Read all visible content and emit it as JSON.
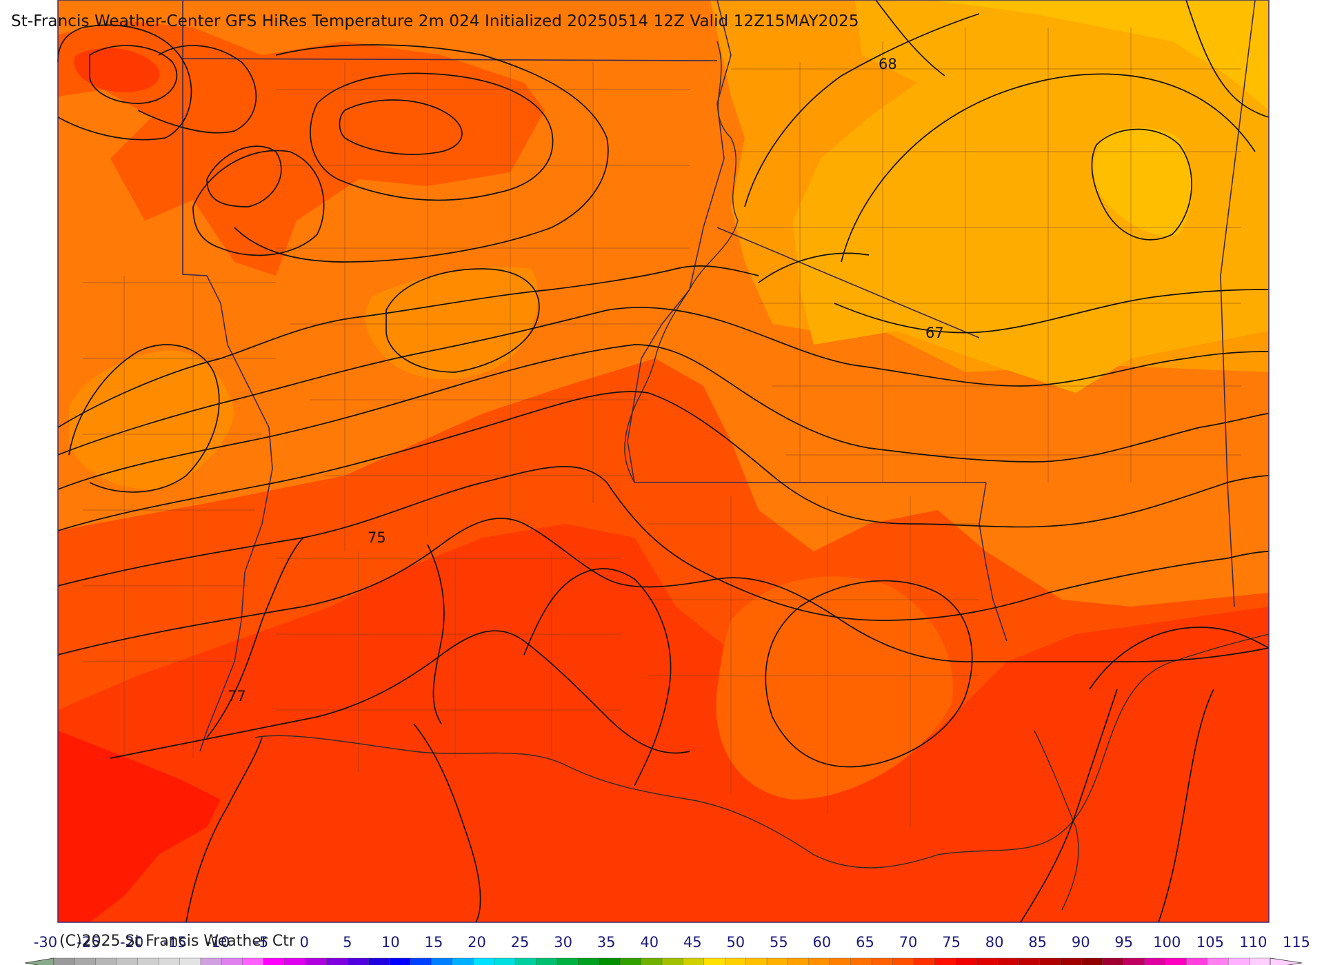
{
  "title": "St-Francis Weather-Center GFS HiRes Temperature 2m  024 Initialized 20250514 12Z Valid 12Z15MAY2025",
  "copyright": "(C)2025 St Francis Weather Ctr",
  "contour_labels": [
    "68",
    "67",
    "75",
    "77"
  ],
  "colorbar": {
    "ticks": [
      "-30",
      "-25",
      "-20",
      "-15",
      "-10",
      "-5",
      "0",
      "5",
      "10",
      "15",
      "20",
      "25",
      "30",
      "35",
      "40",
      "45",
      "50",
      "55",
      "60",
      "65",
      "70",
      "75",
      "80",
      "85",
      "90",
      "95",
      "100",
      "105",
      "110",
      "115"
    ],
    "colors": [
      "#9a9a9a",
      "#a8a8a8",
      "#b6b6b6",
      "#c4c4c4",
      "#cfcfcf",
      "#dadada",
      "#e3e3e3",
      "#d0a0e0",
      "#e080f0",
      "#ff60ff",
      "#ff00ff",
      "#e000f0",
      "#b000e0",
      "#8000e0",
      "#5000e0",
      "#2000e0",
      "#0000ff",
      "#0040ff",
      "#0080ff",
      "#00b0ff",
      "#00e0ff",
      "#00e0e0",
      "#00d0a0",
      "#00c070",
      "#00b040",
      "#00a020",
      "#009000",
      "#30a000",
      "#70b000",
      "#a0c000",
      "#d0d000",
      "#ffe000",
      "#ffd000",
      "#ffc000",
      "#ffb000",
      "#ffa000",
      "#ff9000",
      "#ff8000",
      "#ff7000",
      "#ff6000",
      "#ff5000",
      "#ff3000",
      "#ff1000",
      "#f00000",
      "#e00000",
      "#d00000",
      "#c00000",
      "#b00000",
      "#a00000",
      "#900000",
      "#a00030",
      "#c00060",
      "#e000a0",
      "#ff00c0",
      "#ff40e0",
      "#ff80f0",
      "#ffb0ff",
      "#ffd0ff"
    ]
  }
}
